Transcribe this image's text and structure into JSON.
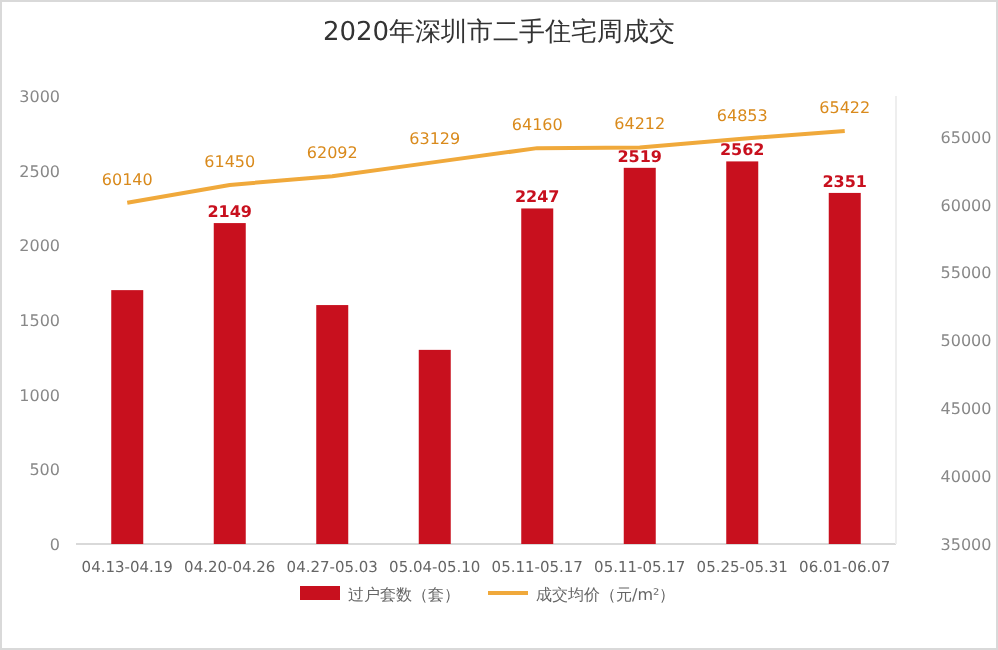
{
  "chart_data": {
    "type": "bar",
    "title": "2020年深圳市二手住宅周成交",
    "categories": [
      "04.13-04.19",
      "04.20-04.26",
      "04.27-05.03",
      "05.04-05.10",
      "05.11-05.17",
      "05.11-05.17",
      "05.25-05.31",
      "06.01-06.07"
    ],
    "series": [
      {
        "name": "过户套数（套）",
        "color": "#c8101e",
        "values": [
          1700,
          2149,
          1600,
          1300,
          2247,
          2519,
          2562,
          2351
        ],
        "value_labels": [
          null,
          "2149",
          null,
          null,
          "2247",
          "2519",
          "2562",
          "2351"
        ]
      },
      {
        "name": "成交均价（元/m²）",
        "type": "line",
        "axis": "y2",
        "color": "#f0a93b",
        "values": [
          60140,
          61450,
          62092,
          63129,
          64160,
          64212,
          64853,
          65422
        ],
        "value_labels": [
          "60140",
          "61450",
          "62092",
          "63129",
          "64160",
          "64212",
          "64853",
          "65422"
        ]
      }
    ],
    "ylim": [
      0,
      3000
    ],
    "yticks": [
      0,
      500,
      1000,
      1500,
      2000,
      2500,
      3000
    ],
    "y2lim": [
      35000,
      68000
    ],
    "y2ticks": [
      35000,
      40000,
      45000,
      50000,
      55000,
      60000,
      65000
    ],
    "legend": "bottom",
    "grid": false,
    "marker": "none",
    "line_style": "solid"
  }
}
